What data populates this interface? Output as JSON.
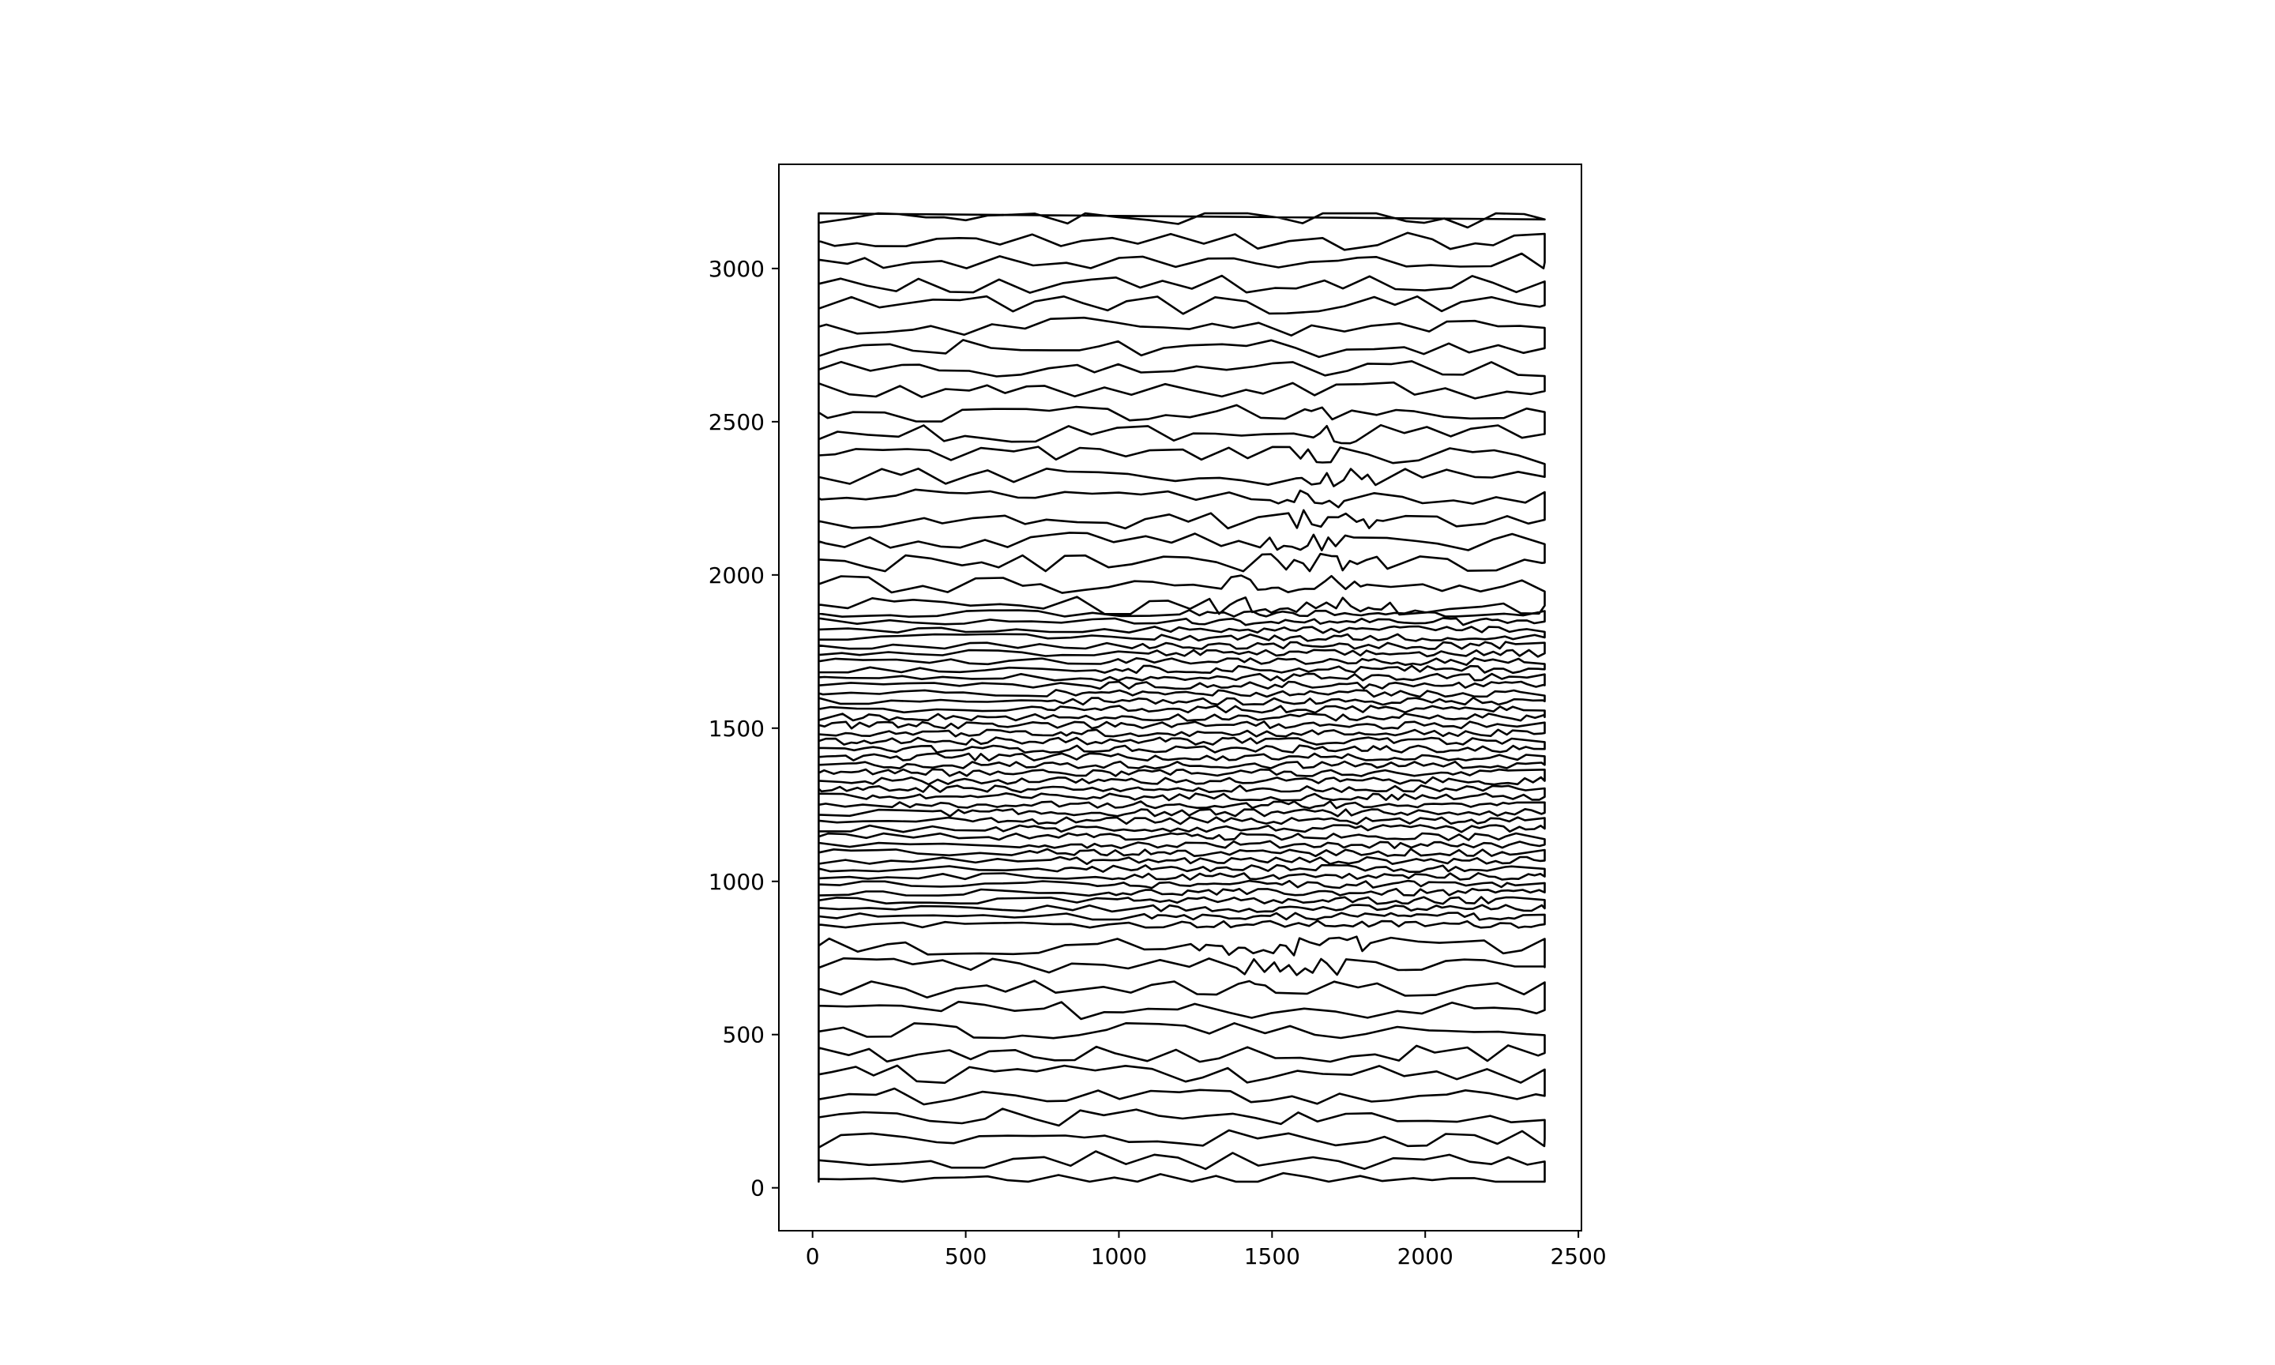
{
  "chart_data": {
    "type": "line",
    "title": "",
    "xlabel": "",
    "ylabel": "",
    "xlim": [
      -110,
      2510
    ],
    "ylim": [
      -140,
      3340
    ],
    "x_ticks": [
      0,
      500,
      1000,
      1500,
      2000,
      2500
    ],
    "y_ticks": [
      0,
      500,
      1000,
      1500,
      2000,
      2500,
      3000
    ],
    "x_tick_labels": [
      "0",
      "500",
      "1000",
      "1500",
      "2000",
      "2500"
    ],
    "y_tick_labels": [
      "0",
      "500",
      "1000",
      "1500",
      "2000",
      "2500",
      "3000"
    ],
    "grid": false,
    "legend": "none",
    "line_color": "#000000",
    "description_of_series": "single continuous closed maze-like curve (TSP art path) filling x 20–2390, y 20–3180; path is dense inside a diagonal band from upper-middle (≈1700,2600) to lower-right and left (≈50,1450), sparse elsewhere",
    "series": [
      {
        "path_extent": {
          "x": [
            20,
            2390
          ],
          "y": [
            20,
            3180
          ]
        },
        "dense_region_outline": [
          [
            50,
            1560
          ],
          [
            700,
            1560
          ],
          [
            1100,
            1800
          ],
          [
            1450,
            2050
          ],
          [
            1650,
            2620
          ],
          [
            1800,
            2400
          ],
          [
            1900,
            1900
          ],
          [
            2390,
            1850
          ],
          [
            2390,
            800
          ],
          [
            2000,
            850
          ],
          [
            1700,
            700
          ],
          [
            1450,
            620
          ],
          [
            1200,
            820
          ],
          [
            900,
            1000
          ],
          [
            500,
            1200
          ],
          [
            50,
            1300
          ]
        ]
      }
    ]
  }
}
